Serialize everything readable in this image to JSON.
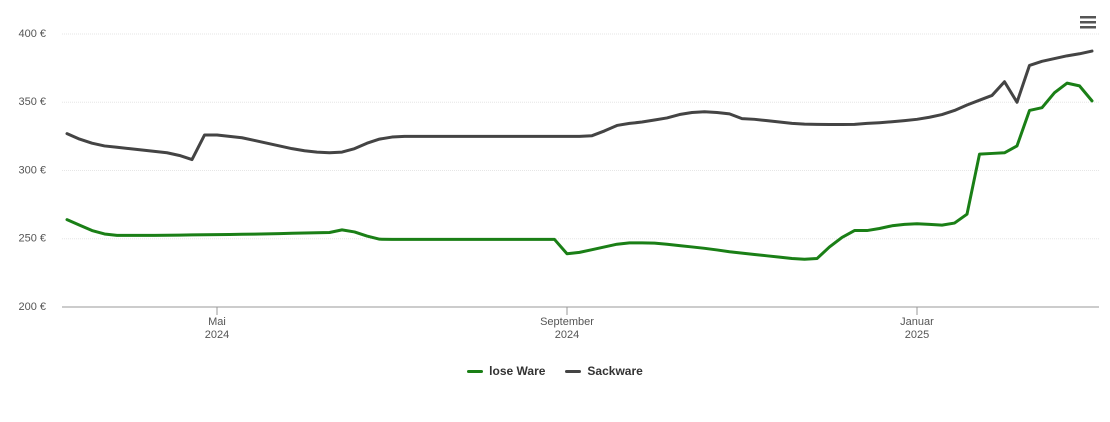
{
  "chart_data": {
    "type": "line",
    "categories": [
      null,
      null,
      null,
      null,
      null,
      null,
      null,
      null,
      null,
      null,
      null,
      null,
      "Mai\n2024",
      null,
      null,
      null,
      null,
      null,
      null,
      null,
      null,
      null,
      null,
      null,
      null,
      null,
      null,
      null,
      null,
      null,
      null,
      null,
      null,
      null,
      null,
      null,
      null,
      null,
      null,
      null,
      "September\n2024",
      null,
      null,
      null,
      null,
      null,
      null,
      null,
      null,
      null,
      null,
      null,
      null,
      null,
      null,
      null,
      null,
      null,
      null,
      null,
      null,
      null,
      null,
      null,
      null,
      null,
      null,
      null,
      "Januar\n2025",
      null,
      null,
      null,
      null,
      null,
      null,
      null,
      null,
      null,
      null,
      null,
      null,
      null,
      null
    ],
    "series": [
      {
        "name": "lose Ware",
        "color": "#1a7f16",
        "values": [
          264,
          260,
          256,
          253.5,
          252.5,
          252.5,
          252.5,
          252.5,
          252.6,
          252.7,
          252.8,
          252.9,
          253,
          253.1,
          253.3,
          253.4,
          253.6,
          253.8,
          254,
          254.2,
          254.4,
          254.6,
          256.5,
          255,
          252,
          249.7,
          249.5,
          249.5,
          249.5,
          249.5,
          249.5,
          249.5,
          249.5,
          249.5,
          249.5,
          249.5,
          249.5,
          249.5,
          249.5,
          249.5,
          239,
          240,
          242,
          244,
          246,
          247,
          247,
          246.8,
          246,
          245,
          244,
          243,
          241.8,
          240.5,
          239.5,
          238.5,
          237.5,
          236.5,
          235.5,
          235,
          235.5,
          244,
          251,
          256,
          256,
          257.5,
          259.5,
          260.5,
          261,
          260.5,
          260,
          261.5,
          268,
          312,
          312.5,
          313,
          318,
          344,
          346,
          357,
          364,
          362,
          351
        ]
      },
      {
        "name": "Sackware",
        "color": "#444444",
        "values": [
          327,
          323,
          320,
          318,
          317,
          316,
          315,
          314,
          313,
          311,
          308,
          326,
          326,
          325,
          324,
          322,
          320,
          318,
          316,
          314.5,
          313.5,
          313,
          313.5,
          316,
          320,
          323,
          324.5,
          325,
          325,
          325,
          325,
          325,
          325,
          325,
          325,
          325,
          325,
          325,
          325,
          325,
          325,
          325,
          325.5,
          329,
          333,
          334.5,
          335.5,
          337,
          338.5,
          341,
          342.5,
          343,
          342.5,
          341.5,
          338,
          337.5,
          336.5,
          335.5,
          334.5,
          334,
          333.8,
          333.7,
          333.7,
          333.8,
          334.5,
          335,
          335.7,
          336.5,
          337.5,
          339,
          341,
          344,
          348,
          351.5,
          355,
          365,
          350,
          377,
          380,
          382,
          384,
          385.5,
          387.5
        ]
      }
    ],
    "ylim": [
      200,
      400
    ],
    "yticks": [
      {
        "value": 200,
        "label": "200 €"
      },
      {
        "value": 250,
        "label": "250 €"
      },
      {
        "value": 300,
        "label": "300 €"
      },
      {
        "value": 350,
        "label": "350 €"
      },
      {
        "value": 400,
        "label": "400 €"
      }
    ],
    "grid": true
  }
}
